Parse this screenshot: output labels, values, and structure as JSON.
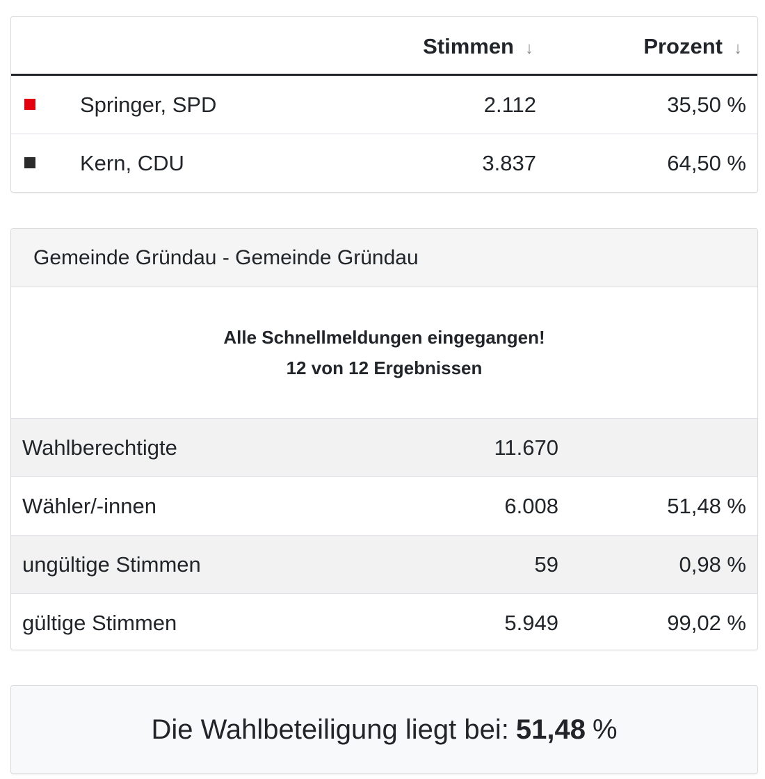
{
  "candidates_table": {
    "headers": {
      "stimmen": "Stimmen",
      "prozent": "Prozent",
      "sort_glyph": "↓"
    },
    "rows": [
      {
        "name": "Springer, SPD",
        "votes": "2.112",
        "percent": "35,50 %",
        "color": "#e3000f"
      },
      {
        "name": "Kern, CDU",
        "votes": "3.837",
        "percent": "64,50 %",
        "color": "#2b2b2b"
      }
    ]
  },
  "municipality": {
    "title": "Gemeinde Gründau - Gemeinde Gründau",
    "notice_line1": "Alle Schnellmeldungen eingegangen!",
    "notice_line2": "12 von 12 Ergebnissen",
    "stats": [
      {
        "label": "Wahlberechtigte",
        "count": "11.670",
        "percent": ""
      },
      {
        "label": "Wähler/-innen",
        "count": "6.008",
        "percent": "51,48 %"
      },
      {
        "label": "ungültige Stimmen",
        "count": "59",
        "percent": "0,98 %"
      },
      {
        "label": "gültige Stimmen",
        "count": "5.949",
        "percent": "99,02 %"
      }
    ]
  },
  "turnout": {
    "prefix": "Die Wahlbeteiligung liegt bei:",
    "value": "51,48",
    "unit": "%"
  }
}
